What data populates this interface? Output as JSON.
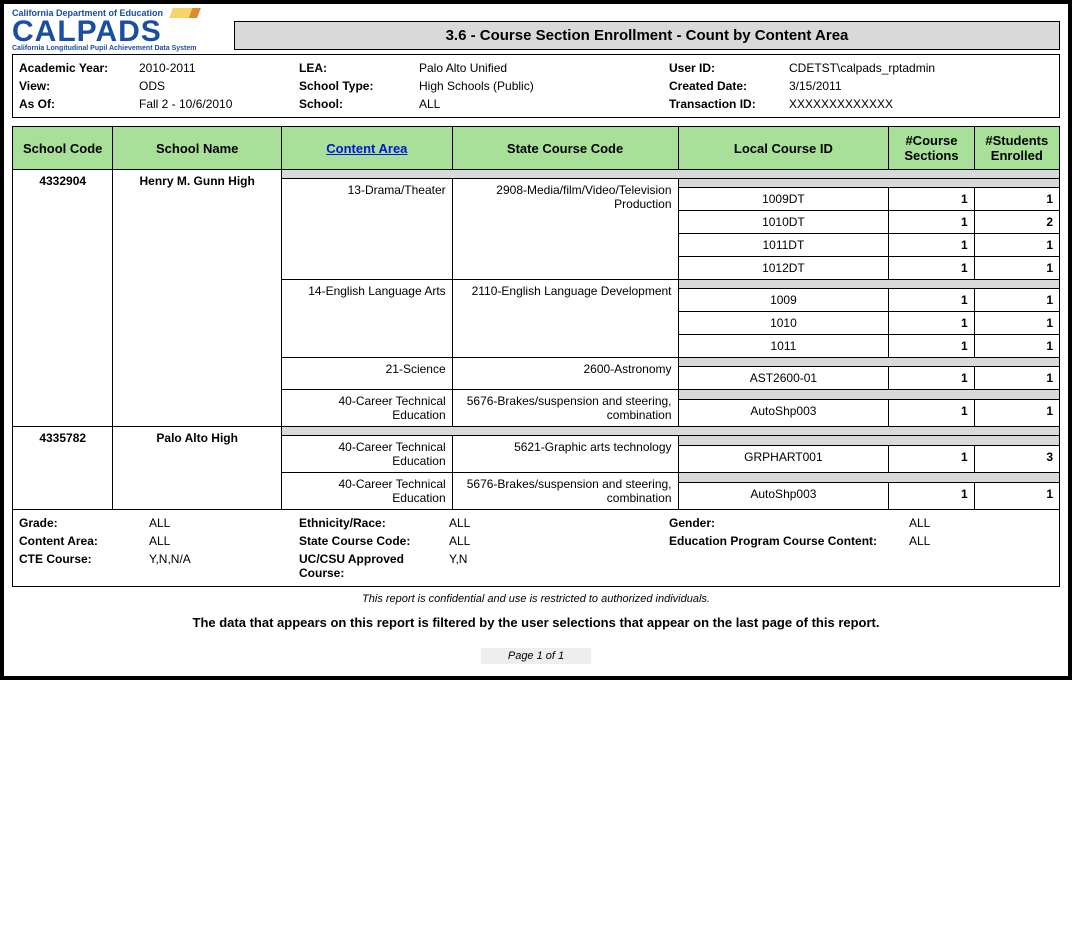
{
  "logo": {
    "top": "California Department of Education",
    "main": "CALPADS",
    "sub": "California Longitudinal Pupil Achievement Data System"
  },
  "title": "3.6 - Course Section Enrollment - Count by Content Area",
  "meta": {
    "col1": [
      {
        "label": "Academic Year:",
        "value": "2010-2011"
      },
      {
        "label": "View:",
        "value": "ODS"
      },
      {
        "label": "As Of:",
        "value": "Fall 2 - 10/6/2010"
      }
    ],
    "col2": [
      {
        "label": "LEA:",
        "value": "Palo Alto Unified"
      },
      {
        "label": "School Type:",
        "value": "High Schools (Public)"
      },
      {
        "label": "School:",
        "value": "ALL"
      }
    ],
    "col3": [
      {
        "label": "User ID:",
        "value": "CDETST\\calpads_rptadmin"
      },
      {
        "label": "Created Date:",
        "value": "3/15/2011"
      },
      {
        "label": "Transaction ID:",
        "value": "XXXXXXXXXXXXX"
      }
    ]
  },
  "columns": {
    "c0": "School Code",
    "c1": "School Name",
    "c2": "Content Area",
    "c3": "State Course Code",
    "c4": "Local Course ID",
    "c5": "#Course Sections",
    "c6": "#Students Enrolled"
  },
  "schools": [
    {
      "code": "4332904",
      "name": "Henry M. Gunn High",
      "areas": [
        {
          "area": "13-Drama/Theater",
          "state": "2908-Media/film/Video/Television Production",
          "locals": [
            {
              "id": "1009DT",
              "sections": "1",
              "students": "1"
            },
            {
              "id": "1010DT",
              "sections": "1",
              "students": "2"
            },
            {
              "id": "1011DT",
              "sections": "1",
              "students": "1"
            },
            {
              "id": "1012DT",
              "sections": "1",
              "students": "1"
            }
          ]
        },
        {
          "area": "14-English Language Arts",
          "state": "2110-English Language Development",
          "locals": [
            {
              "id": "1009",
              "sections": "1",
              "students": "1"
            },
            {
              "id": "1010",
              "sections": "1",
              "students": "1"
            },
            {
              "id": "1011",
              "sections": "1",
              "students": "1"
            }
          ]
        },
        {
          "area": "21-Science",
          "state": "2600-Astronomy",
          "locals": [
            {
              "id": "AST2600-01",
              "sections": "1",
              "students": "1"
            }
          ]
        },
        {
          "area": "40-Career Technical Education",
          "state": "5676-Brakes/suspension and steering, combination",
          "locals": [
            {
              "id": "AutoShp003",
              "sections": "1",
              "students": "1"
            }
          ]
        }
      ]
    },
    {
      "code": "4335782",
      "name": "Palo Alto High",
      "areas": [
        {
          "area": "40-Career Technical Education",
          "state": "5621-Graphic arts technology",
          "locals": [
            {
              "id": "GRPHART001",
              "sections": "1",
              "students": "3"
            }
          ]
        },
        {
          "area": "40-Career Technical Education",
          "state": "5676-Brakes/suspension and steering, combination",
          "locals": [
            {
              "id": "AutoShp003",
              "sections": "1",
              "students": "1"
            }
          ]
        }
      ]
    }
  ],
  "filters": {
    "col1": [
      {
        "label": "Grade:",
        "value": "ALL"
      },
      {
        "label": "Content Area:",
        "value": "ALL"
      },
      {
        "label": "CTE Course:",
        "value": "Y,N,N/A"
      }
    ],
    "col2": [
      {
        "label": "Ethnicity/Race:",
        "value": "ALL"
      },
      {
        "label": "State Course Code:",
        "value": "ALL"
      },
      {
        "label": "UC/CSU Approved Course:",
        "value": "Y,N"
      }
    ],
    "col3": [
      {
        "label": "Gender:",
        "value": "ALL"
      },
      {
        "label": "Education Program Course Content:",
        "value": "ALL"
      }
    ]
  },
  "confidential": "This report is confidential and use is restricted to authorized individuals.",
  "filter_note": "The data that appears on this report is filtered by the user selections that appear on the last page of this report.",
  "pager": "Page 1 of 1"
}
